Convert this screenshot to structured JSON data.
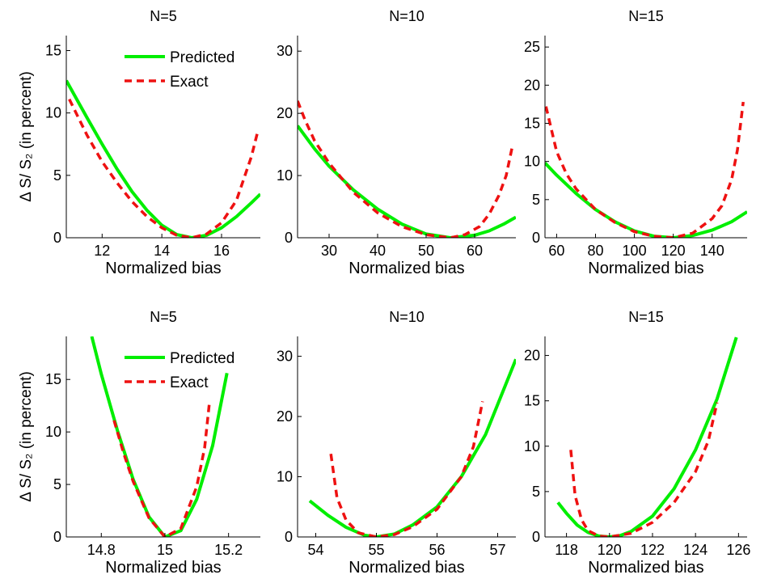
{
  "chart_data": [
    {
      "type": "line",
      "title": "N=5",
      "xlabel": "Normalized bias",
      "ylabel": "Δ S/ S₂ (in percent)",
      "xlim": [
        10.8,
        17.3
      ],
      "ylim": [
        0,
        16.2
      ],
      "xticks": [
        12,
        14,
        16
      ],
      "yticks": [
        0,
        5,
        10,
        15
      ],
      "legend": {
        "position": "top-right",
        "entries": [
          "Predicted",
          "Exact"
        ]
      },
      "series": [
        {
          "name": "Predicted",
          "color": "#00ee00",
          "style": "solid",
          "x": [
            10.8,
            11.5,
            12,
            12.5,
            13,
            13.5,
            14,
            14.5,
            15,
            15.5,
            16,
            16.5,
            17,
            17.3
          ],
          "y": [
            12.6,
            9.6,
            7.5,
            5.5,
            3.7,
            2.2,
            1.0,
            0.25,
            0,
            0.2,
            0.8,
            1.7,
            2.8,
            3.5
          ]
        },
        {
          "name": "Exact",
          "color": "#ee1111",
          "style": "dashed",
          "x": [
            10.9,
            11.5,
            12,
            12.5,
            13,
            13.5,
            14,
            14.5,
            15,
            15.5,
            16,
            16.5,
            17,
            17.2
          ],
          "y": [
            11.1,
            8.2,
            6.1,
            4.4,
            2.9,
            1.7,
            0.8,
            0.2,
            0,
            0.3,
            1.2,
            3.0,
            6.5,
            8.4
          ]
        }
      ]
    },
    {
      "type": "line",
      "title": "N=10",
      "xlabel": "Normalized bias",
      "ylabel": "",
      "xlim": [
        23.5,
        68.5
      ],
      "ylim": [
        0,
        32.5
      ],
      "xticks": [
        30,
        40,
        50,
        60
      ],
      "yticks": [
        0,
        10,
        20,
        30
      ],
      "series": [
        {
          "name": "Predicted",
          "color": "#00ee00",
          "style": "solid",
          "x": [
            23.5,
            27,
            30,
            35,
            40,
            45,
            50,
            55,
            60,
            63,
            66,
            68.5
          ],
          "y": [
            18.0,
            14.3,
            11.5,
            7.7,
            4.6,
            2.2,
            0.6,
            0,
            0.4,
            1.1,
            2.2,
            3.3
          ]
        },
        {
          "name": "Exact",
          "color": "#ee1111",
          "style": "dashed",
          "x": [
            23.5,
            25,
            27,
            30,
            35,
            40,
            45,
            50,
            55,
            58,
            61,
            63,
            65,
            66.5,
            67.8
          ],
          "y": [
            22.0,
            19.0,
            15.6,
            12.0,
            7.3,
            4.0,
            1.8,
            0.5,
            0,
            0.5,
            1.8,
            3.8,
            6.8,
            10.0,
            14.8
          ]
        }
      ]
    },
    {
      "type": "line",
      "title": "N=15",
      "xlabel": "Normalized bias",
      "ylabel": "",
      "xlim": [
        54,
        158
      ],
      "ylim": [
        0,
        26.5
      ],
      "xticks": [
        60,
        80,
        100,
        120,
        140
      ],
      "yticks": [
        0,
        5,
        10,
        15,
        20,
        25
      ],
      "series": [
        {
          "name": "Predicted",
          "color": "#00ee00",
          "style": "solid",
          "x": [
            54,
            60,
            70,
            80,
            90,
            100,
            110,
            120,
            130,
            140,
            150,
            158
          ],
          "y": [
            9.8,
            8.2,
            5.8,
            3.7,
            2.1,
            0.9,
            0.2,
            0,
            0.3,
            1.0,
            2.1,
            3.4
          ]
        },
        {
          "name": "Exact",
          "color": "#ee1111",
          "style": "dashed",
          "x": [
            54.5,
            60,
            65,
            70,
            80,
            90,
            100,
            110,
            120,
            130,
            140,
            145,
            150,
            153,
            156
          ],
          "y": [
            17.2,
            11.3,
            8.4,
            6.4,
            3.7,
            2.0,
            0.8,
            0.2,
            0,
            0.6,
            2.5,
            4.2,
            7.6,
            11.5,
            17.8
          ]
        }
      ]
    },
    {
      "type": "line",
      "title": "N=5",
      "xlabel": "Normalized bias",
      "ylabel": "Δ S/ S₂ (in percent)",
      "xlim": [
        14.69,
        15.3
      ],
      "ylim": [
        0,
        19.1
      ],
      "xticks": [
        14.8,
        15,
        15.2
      ],
      "yticks": [
        0,
        5,
        10,
        15
      ],
      "legend": {
        "position": "top-right",
        "entries": [
          "Predicted",
          "Exact"
        ]
      },
      "series": [
        {
          "name": "Predicted",
          "color": "#00ee00",
          "style": "solid",
          "x": [
            14.77,
            14.8,
            14.85,
            14.9,
            14.95,
            15,
            15.05,
            15.1,
            15.15,
            15.195
          ],
          "y": [
            19.1,
            15.5,
            10.2,
            5.5,
            1.9,
            0,
            0.6,
            3.6,
            8.7,
            15.6
          ]
        },
        {
          "name": "Exact",
          "color": "#ee1111",
          "style": "dashed",
          "x": [
            14.84,
            14.87,
            14.9,
            14.95,
            15,
            15.05,
            15.1,
            15.125,
            15.14
          ],
          "y": [
            11.1,
            8.0,
            5.3,
            1.8,
            0,
            0.8,
            4.8,
            8.5,
            12.8
          ]
        }
      ]
    },
    {
      "type": "line",
      "title": "N=10",
      "xlabel": "Normalized bias",
      "ylabel": "",
      "xlim": [
        53.7,
        57.3
      ],
      "ylim": [
        0,
        33.3
      ],
      "xticks": [
        54,
        55,
        56,
        57
      ],
      "yticks": [
        0,
        10,
        20,
        30
      ],
      "series": [
        {
          "name": "Predicted",
          "color": "#00ee00",
          "style": "solid",
          "x": [
            53.9,
            54.2,
            54.5,
            54.8,
            55.0,
            55.3,
            55.6,
            56.0,
            56.4,
            56.8,
            57.3
          ],
          "y": [
            6.0,
            3.6,
            1.6,
            0.3,
            0,
            0.5,
            2.0,
            5.0,
            10.0,
            17.0,
            29.5
          ]
        },
        {
          "name": "Exact",
          "color": "#ee1111",
          "style": "dashed",
          "x": [
            54.25,
            54.35,
            54.5,
            54.7,
            55.0,
            55.3,
            55.6,
            56.0,
            56.4,
            56.6,
            56.75
          ],
          "y": [
            13.8,
            6.5,
            2.8,
            0.7,
            0,
            0.4,
            1.7,
            4.6,
            10.0,
            15.0,
            22.5
          ]
        }
      ]
    },
    {
      "type": "line",
      "title": "N=15",
      "xlabel": "Normalized bias",
      "ylabel": "",
      "xlim": [
        117,
        126.4
      ],
      "ylim": [
        0,
        22.1
      ],
      "xticks": [
        118,
        120,
        122,
        124,
        126
      ],
      "yticks": [
        0,
        5,
        10,
        15,
        20
      ],
      "series": [
        {
          "name": "Predicted",
          "color": "#00ee00",
          "style": "solid",
          "x": [
            117.6,
            118,
            118.5,
            119,
            119.5,
            120,
            120.5,
            121,
            122,
            123,
            124,
            125,
            125.9
          ],
          "y": [
            3.8,
            2.6,
            1.3,
            0.5,
            0.1,
            0,
            0.15,
            0.6,
            2.3,
            5.3,
            9.6,
            15.2,
            22.0
          ]
        },
        {
          "name": "Exact",
          "color": "#ee1111",
          "style": "dashed",
          "x": [
            118.2,
            118.4,
            118.7,
            119,
            119.5,
            120,
            121,
            122,
            123,
            124,
            124.6,
            125
          ],
          "y": [
            9.6,
            4.6,
            1.9,
            0.7,
            0.1,
            0,
            0.4,
            1.6,
            3.8,
            7.2,
            10.6,
            14.8
          ]
        }
      ]
    }
  ]
}
